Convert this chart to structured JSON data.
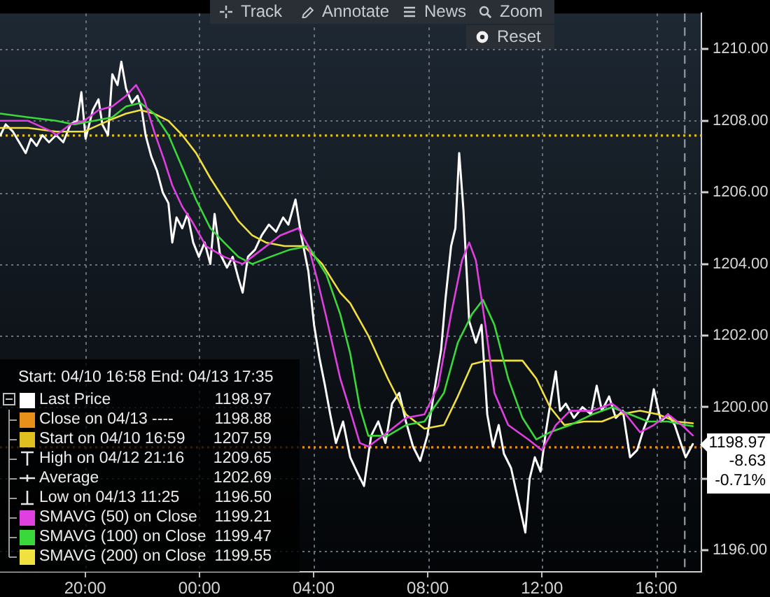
{
  "chart_data": {
    "type": "line",
    "legend_title": "Start: 04/10 16:58 End: 04/13 17:35",
    "series": [
      {
        "name": "Last Price",
        "color": "#ffffff",
        "x": [
          "--04-12T17:02",
          "--04-12T17:13",
          "--04-12T17:28",
          "--04-12T17:55",
          "--04-12T18:06",
          "--04-12T18:18",
          "--04-12T18:30",
          "--04-12T18:44",
          "--04-12T18:59",
          "--04-12T19:14",
          "--04-12T19:29",
          "--04-12T19:43",
          "--04-12T19:52",
          "--04-12T20:01",
          "--04-12T20:16",
          "--04-12T20:28",
          "--04-12T20:36",
          "--04-12T20:48",
          "--04-12T20:57",
          "--04-12T21:08",
          "--04-12T21:16",
          "--04-12T21:26",
          "--04-12T21:38",
          "--04-12T21:50",
          "--04-12T21:59",
          "--04-12T22:07",
          "--04-12T22:19",
          "--04-12T22:31",
          "--04-12T22:43",
          "--04-12T22:55",
          "--04-12T23:03",
          "--04-12T23:12",
          "--04-12T23:24",
          "--04-12T23:35",
          "--04-12T23:47",
          "--04-12T23:59",
          "--04-13T00:11",
          "--04-13T00:23",
          "--04-13T00:32",
          "--04-13T00:43",
          "--04-13T00:58",
          "--04-13T01:10",
          "--04-13T01:22",
          "--04-13T01:31",
          "--04-13T01:42",
          "--04-13T01:57",
          "--04-13T02:11",
          "--04-13T02:26",
          "--04-13T02:41",
          "--04-13T02:56",
          "--04-13T03:07",
          "--04-13T03:22",
          "--04-13T03:34",
          "--04-13T03:49",
          "--04-13T04:01",
          "--04-13T04:12",
          "--04-13T04:24",
          "--04-13T04:35",
          "--04-13T04:47",
          "--04-13T05:02",
          "--04-13T05:17",
          "--04-13T05:31",
          "--04-13T05:46",
          "--04-13T06:01",
          "--04-13T06:16",
          "--04-13T06:31",
          "--04-13T06:45",
          "--04-13T07:00",
          "--04-13T07:14",
          "--04-13T07:29",
          "--04-13T07:44",
          "--04-13T07:59",
          "--04-13T08:13",
          "--04-13T08:28",
          "--04-13T08:37",
          "--04-13T08:49",
          "--04-13T08:58",
          "--04-13T09:06",
          "--04-13T09:15",
          "--04-13T09:27",
          "--04-13T09:41",
          "--04-13T09:53",
          "--04-13T10:05",
          "--04-13T10:17",
          "--04-13T10:29",
          "--04-13T10:40",
          "--04-13T10:55",
          "--04-13T11:25",
          "--04-13T11:34",
          "--04-13T11:45",
          "--04-13T11:57",
          "--04-13T12:08",
          "--04-13T12:20",
          "--04-13T12:29",
          "--04-13T12:38",
          "--04-13T12:50",
          "--04-13T13:07",
          "--04-13T13:25",
          "--04-13T13:43",
          "--04-13T13:55",
          "--04-13T14:06",
          "--04-13T14:21",
          "--04-13T14:35",
          "--04-13T14:50",
          "--04-13T15:05",
          "--04-13T15:20",
          "--04-13T15:34",
          "--04-13T15:46",
          "--04-13T15:55",
          "--04-13T16:10",
          "--04-13T16:25",
          "--04-13T16:39",
          "--04-13T16:54",
          "--04-13T17:02",
          "--04-13T17:17"
        ],
        "values": [
          1207.6,
          1207.9,
          1207.7,
          1207.1,
          1207.5,
          1207.3,
          1207.6,
          1207.4,
          1207.6,
          1207.4,
          1207.9,
          1208.0,
          1208.8,
          1207.5,
          1208.3,
          1208.6,
          1207.9,
          1207.6,
          1209.3,
          1209.0,
          1209.65,
          1208.9,
          1208.5,
          1208.7,
          1208.3,
          1207.6,
          1207.0,
          1206.6,
          1206.0,
          1205.7,
          1204.6,
          1205.3,
          1205.0,
          1205.4,
          1204.6,
          1204.2,
          1204.6,
          1204.0,
          1205.4,
          1204.3,
          1203.9,
          1204.2,
          1203.6,
          1203.2,
          1204.2,
          1204.4,
          1204.8,
          1205.1,
          1204.9,
          1205.3,
          1205.1,
          1205.8,
          1204.8,
          1203.8,
          1202.3,
          1201.4,
          1200.6,
          1199.8,
          1199.0,
          1199.6,
          1198.6,
          1198.2,
          1197.8,
          1199.2,
          1199.6,
          1199.0,
          1200.1,
          1200.4,
          1199.6,
          1198.9,
          1198.5,
          1199.2,
          1200.4,
          1201.6,
          1203.0,
          1204.5,
          1205.0,
          1207.1,
          1205.5,
          1202.4,
          1201.8,
          1202.3,
          1199.8,
          1198.9,
          1199.5,
          1198.7,
          1198.3,
          1196.5,
          1198.0,
          1198.6,
          1198.2,
          1199.3,
          1200.3,
          1201.0,
          1199.9,
          1200.1,
          1199.7,
          1200.0,
          1199.8,
          1200.6,
          1199.9,
          1200.3,
          1199.7,
          1199.9,
          1198.6,
          1198.8,
          1199.4,
          1199.8,
          1200.5,
          1199.6,
          1199.8,
          1199.5,
          1198.9,
          1198.6,
          1198.97
        ]
      },
      {
        "name": "SMAVG (50) on Close",
        "color": "#e040e0",
        "x": [
          "--04-12T17:02",
          "--04-12T18:00",
          "--04-12T18:50",
          "--04-12T18:59",
          "--04-12T19:29",
          "--04-12T19:58",
          "--04-12T20:28",
          "--04-12T20:57",
          "--04-12T21:26",
          "--04-12T21:47",
          "--04-12T22:04",
          "--04-12T22:25",
          "--04-12T22:46",
          "--04-12T23:03",
          "--04-12T23:24",
          "--04-12T23:44",
          "--04-13T00:14",
          "--04-13T00:52",
          "--04-13T01:31",
          "--04-13T02:11",
          "--04-13T02:50",
          "--04-13T03:28",
          "--04-13T03:49",
          "--04-13T04:09",
          "--04-13T04:27",
          "--04-13T04:56",
          "--04-13T05:17",
          "--04-13T05:37",
          "--04-13T05:55",
          "--04-13T06:36",
          "--04-13T07:14",
          "--04-13T07:53",
          "--04-13T08:22",
          "--04-13T08:49",
          "--04-13T09:12",
          "--04-13T09:27",
          "--04-13T09:41",
          "--04-13T10:02",
          "--04-13T10:20",
          "--04-13T10:49",
          "--04-13T11:31",
          "--04-13T12:00",
          "--04-13T12:29",
          "--04-13T12:59",
          "--04-13T13:46",
          "--04-13T14:27",
          "--04-13T14:56",
          "--04-13T15:26",
          "--04-13T15:55",
          "--04-13T16:25",
          "--04-13T16:54",
          "--04-13T17:17"
        ],
        "values": [
          1208.0,
          1208.0,
          1207.7,
          1207.6,
          1207.9,
          1208.0,
          1208.3,
          1208.4,
          1208.7,
          1209.0,
          1208.6,
          1207.7,
          1206.9,
          1206.2,
          1205.6,
          1205.2,
          1204.5,
          1204.2,
          1204.0,
          1204.4,
          1204.8,
          1205.0,
          1204.5,
          1203.5,
          1202.5,
          1200.8,
          1199.9,
          1199.0,
          1198.9,
          1199.3,
          1199.7,
          1199.8,
          1200.6,
          1202.6,
          1204.1,
          1204.6,
          1204.1,
          1202.2,
          1200.4,
          1199.5,
          1199.1,
          1198.8,
          1199.5,
          1199.9,
          1199.9,
          1200.1,
          1199.8,
          1199.3,
          1199.5,
          1199.8,
          1199.5,
          1199.21
        ]
      },
      {
        "name": "SMAVG (100) on Close",
        "color": "#3ad83a",
        "x": [
          "--04-12T17:02",
          "--04-12T18:00",
          "--04-12T18:59",
          "--04-12T19:37",
          "--04-12T20:19",
          "--04-12T20:57",
          "--04-12T21:26",
          "--04-12T21:56",
          "--04-12T22:25",
          "--04-12T22:55",
          "--04-12T23:24",
          "--04-12T23:53",
          "--04-13T00:23",
          "--04-13T00:52",
          "--04-13T01:22",
          "--04-13T01:51",
          "--04-13T02:29",
          "--04-13T03:10",
          "--04-13T03:49",
          "--04-13T04:27",
          "--04-13T04:56",
          "--04-13T05:17",
          "--04-13T05:37",
          "--04-13T05:55",
          "--04-13T06:36",
          "--04-13T07:14",
          "--04-13T07:53",
          "--04-13T08:34",
          "--04-13T09:03",
          "--04-13T09:33",
          "--04-13T09:56",
          "--04-13T10:20",
          "--04-13T10:49",
          "--04-13T11:19",
          "--04-13T11:48",
          "--04-13T12:17",
          "--04-13T12:59",
          "--04-13T13:46",
          "--04-13T14:27",
          "--04-13T15:05",
          "--04-13T15:43",
          "--04-13T16:25",
          "--04-13T17:02",
          "--04-13T17:17"
        ],
        "values": [
          1208.2,
          1208.1,
          1208.0,
          1207.9,
          1208.0,
          1208.1,
          1208.4,
          1208.5,
          1208.2,
          1207.6,
          1206.7,
          1205.8,
          1205.0,
          1204.6,
          1204.2,
          1204.0,
          1204.2,
          1204.4,
          1204.5,
          1203.7,
          1202.6,
          1201.5,
          1200.0,
          1199.2,
          1199.2,
          1199.5,
          1199.6,
          1200.4,
          1201.8,
          1202.6,
          1203.0,
          1202.3,
          1200.8,
          1199.7,
          1199.1,
          1199.3,
          1199.5,
          1199.8,
          1200.0,
          1199.8,
          1199.6,
          1199.6,
          1199.5,
          1199.47
        ]
      },
      {
        "name": "SMAVG (200) on Close",
        "color": "#f0e040",
        "x": [
          "--04-12T17:02",
          "--04-12T18:00",
          "--04-12T18:59",
          "--04-12T19:58",
          "--04-12T20:48",
          "--04-12T21:26",
          "--04-12T21:56",
          "--04-12T22:25",
          "--04-12T22:55",
          "--04-12T23:24",
          "--04-12T23:53",
          "--04-13T00:23",
          "--04-13T00:52",
          "--04-13T01:22",
          "--04-13T01:51",
          "--04-13T02:20",
          "--04-13T02:59",
          "--04-13T03:40",
          "--04-13T04:18",
          "--04-13T04:56",
          "--04-13T05:17",
          "--04-13T05:55",
          "--04-13T06:36",
          "--04-13T07:14",
          "--04-13T07:53",
          "--04-13T08:34",
          "--04-13T09:03",
          "--04-13T09:33",
          "--04-13T10:02",
          "--04-13T10:40",
          "--04-13T11:19",
          "--04-13T11:48",
          "--04-13T12:17",
          "--04-13T12:47",
          "--04-13T13:28",
          "--04-13T14:06",
          "--04-13T14:44",
          "--04-13T15:26",
          "--04-13T16:04",
          "--04-13T16:42",
          "--04-13T17:17"
        ],
        "values": [
          1207.8,
          1207.8,
          1207.7,
          1207.7,
          1208.0,
          1208.2,
          1208.3,
          1208.2,
          1208.0,
          1207.6,
          1207.1,
          1206.4,
          1205.8,
          1205.2,
          1204.8,
          1204.6,
          1204.5,
          1204.5,
          1204.0,
          1203.2,
          1202.9,
          1202.0,
          1200.8,
          1199.8,
          1199.4,
          1199.5,
          1200.3,
          1201.2,
          1201.3,
          1201.3,
          1201.3,
          1200.8,
          1200.0,
          1199.5,
          1199.6,
          1199.6,
          1199.8,
          1199.9,
          1199.8,
          1199.6,
          1199.55
        ]
      }
    ],
    "xlim": [
      "--04-12T17:01",
      "--04-13T17:35"
    ],
    "xticks": [
      {
        "value": "--04-12T20:00",
        "label": "20:00"
      },
      {
        "value": "--04-13T00:00",
        "label": "00:00"
      },
      {
        "value": "--04-13T04:00",
        "label": "04:00"
      },
      {
        "value": "--04-13T08:00",
        "label": "08:00"
      },
      {
        "value": "--04-13T12:00",
        "label": "12:00"
      },
      {
        "value": "--04-13T16:00",
        "label": "16:00"
      }
    ],
    "ylim": [
      1195.4,
      1211.0
    ],
    "yticks": [
      {
        "value": 1196,
        "label": "1196.00"
      },
      {
        "value": 1198,
        "label": null
      },
      {
        "value": 1200,
        "label": "1200.00"
      },
      {
        "value": 1202,
        "label": "1202.00"
      },
      {
        "value": 1204,
        "label": "1204.00"
      },
      {
        "value": 1206,
        "label": "1206.00"
      },
      {
        "value": 1208,
        "label": "1208.00"
      },
      {
        "value": 1210,
        "label": "1210.00"
      }
    ],
    "ref_lines": [
      {
        "axis": "y",
        "value": 1198.88,
        "color": "#e8901a",
        "line_style": "dotted"
      },
      {
        "axis": "y",
        "value": 1207.59,
        "color": "#e0c020",
        "line_style": "dotted"
      },
      {
        "axis": "x",
        "value": "--04-13T17:00",
        "color": "#8a9099",
        "line_style": "dashed"
      }
    ],
    "annotations": [
      "Close on 04/13 ----",
      "Start on 04/10 16:59",
      "High on 04/12 21:16",
      "Average",
      "Low on 04/13 11:25",
      "1198.97",
      "1198.88",
      "1207.59",
      "1209.65",
      "1202.69",
      "1196.50",
      "1199.21",
      "1199.47",
      "1199.55",
      "1198.97",
      "-8.63",
      "-0.71%",
      "Track",
      "Annotate",
      "News",
      "Zoom",
      "Reset"
    ],
    "grid": true,
    "legend": "bottom left",
    "marker": "none",
    "line_style": "solid"
  }
}
